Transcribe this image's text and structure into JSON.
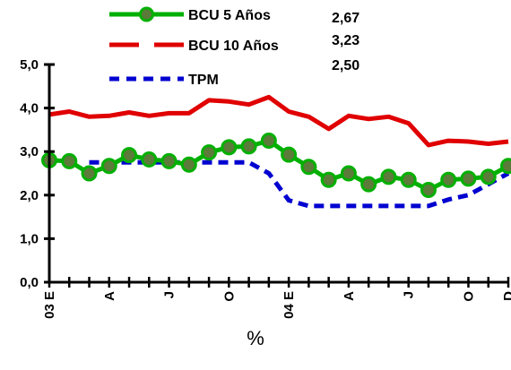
{
  "chart_data": {
    "type": "line",
    "ylabel": "%",
    "ylim": [
      0,
      5
    ],
    "y_ticks": [
      "0,0",
      "1,0",
      "2,0",
      "3,0",
      "4,0",
      "5,0"
    ],
    "x_tick_labels": [
      "03 E",
      "A",
      "J",
      "O",
      "04 E",
      "A",
      "J",
      "O",
      "D"
    ],
    "x_count": 24,
    "x_tick_positions": [
      0,
      3,
      6,
      9,
      12,
      15,
      18,
      21,
      23
    ],
    "series": [
      {
        "name": "BCU 5 Años",
        "latest": "2,67",
        "color": "#00b000",
        "values": [
          2.8,
          2.78,
          2.5,
          2.67,
          2.92,
          2.82,
          2.78,
          2.7,
          2.98,
          3.1,
          3.12,
          3.25,
          2.93,
          2.65,
          2.35,
          2.5,
          2.25,
          2.42,
          2.35,
          2.12,
          2.35,
          2.38,
          2.42,
          2.67
        ]
      },
      {
        "name": "BCU 10 Años",
        "latest": "3,23",
        "color": "#e00000",
        "values": [
          3.85,
          3.92,
          3.8,
          3.82,
          3.9,
          3.82,
          3.88,
          3.88,
          4.18,
          4.15,
          4.08,
          4.25,
          3.92,
          3.8,
          3.52,
          3.82,
          3.75,
          3.8,
          3.65,
          3.15,
          3.25,
          3.23,
          3.18,
          3.23
        ]
      },
      {
        "name": "TPM",
        "latest": "2,50",
        "color": "#0000d0",
        "values": [
          null,
          null,
          2.75,
          2.75,
          2.75,
          2.75,
          2.75,
          2.75,
          2.75,
          2.75,
          2.75,
          2.5,
          1.88,
          1.75,
          1.75,
          1.75,
          1.75,
          1.75,
          1.75,
          1.75,
          1.9,
          2.0,
          2.25,
          2.5
        ]
      }
    ]
  }
}
